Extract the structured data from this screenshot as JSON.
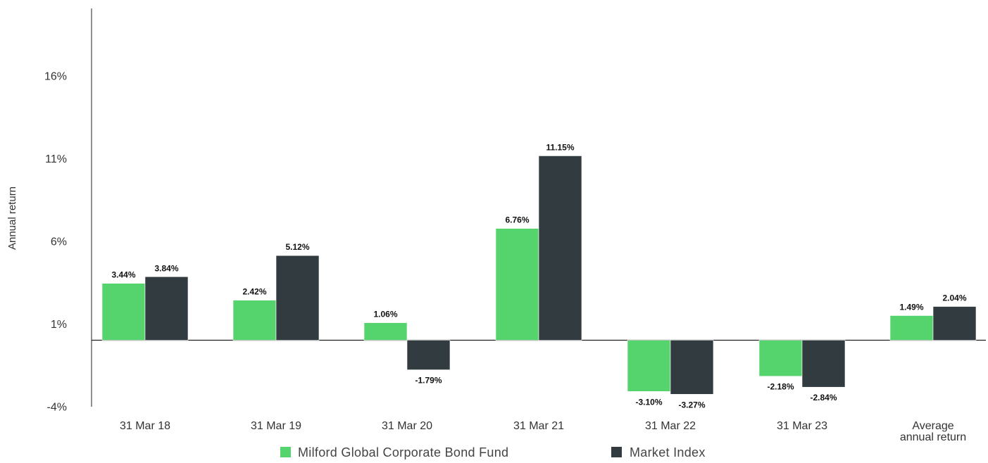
{
  "chart_data": {
    "type": "bar",
    "title": "",
    "xlabel": "",
    "ylabel": "Annual return",
    "categories": [
      [
        "31 Mar 18"
      ],
      [
        "31 Mar 19"
      ],
      [
        "31 Mar 20"
      ],
      [
        "31 Mar 21"
      ],
      [
        "31 Mar 22"
      ],
      [
        "31 Mar 23"
      ],
      [
        "Average",
        "annual return"
      ]
    ],
    "series": [
      {
        "name": "Milford Global Corporate Bond Fund",
        "color": "#55d46d",
        "values": [
          3.44,
          2.42,
          1.06,
          6.76,
          -3.1,
          -2.18,
          1.49
        ],
        "labels": [
          "3.44%",
          "2.42%",
          "1.06%",
          "6.76%",
          "-3.10%",
          "-2.18%",
          "1.49%"
        ]
      },
      {
        "name": "Market Index",
        "color": "#323b40",
        "values": [
          3.84,
          5.12,
          -1.79,
          11.15,
          -3.27,
          -2.84,
          2.04
        ],
        "labels": [
          "3.84%",
          "5.12%",
          "-1.79%",
          "11.15%",
          "-3.27%",
          "-2.84%",
          "2.04%"
        ]
      }
    ],
    "ylim": [
      -4,
      20
    ],
    "yticks": [
      -4,
      1,
      6,
      11,
      16
    ],
    "ytick_labels": [
      "-4%",
      "1%",
      "6%",
      "11%",
      "16%"
    ],
    "grid": false,
    "legend": "bottom-center"
  }
}
